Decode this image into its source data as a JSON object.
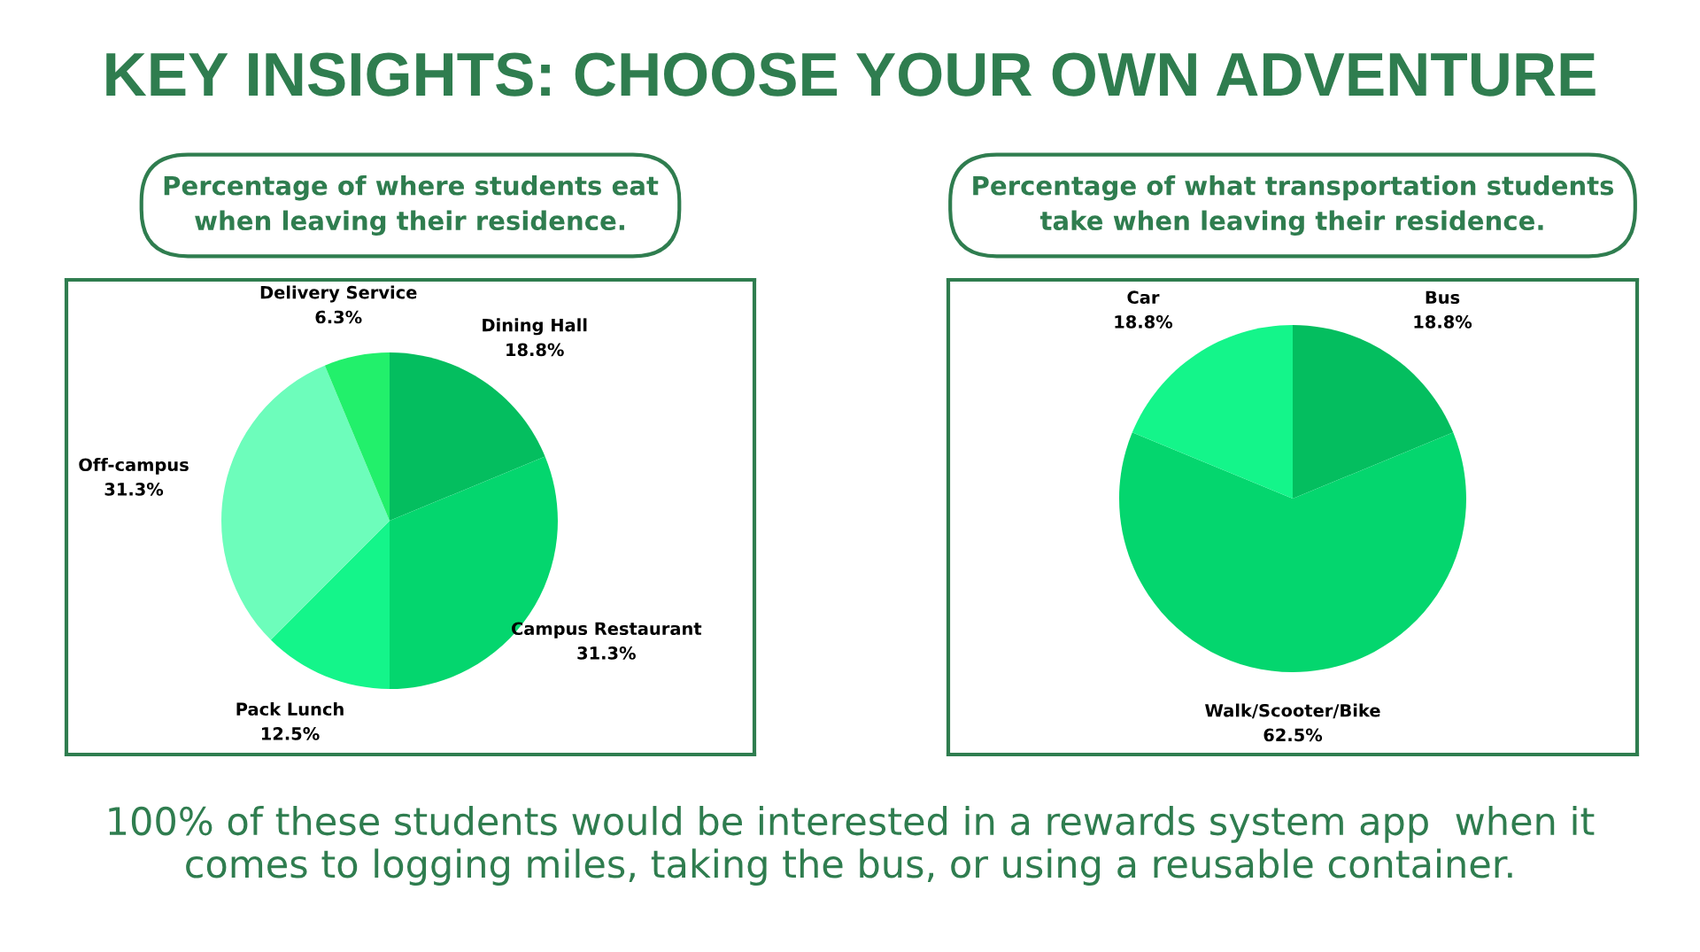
{
  "chart_data": [
    {
      "type": "other",
      "title": "KEY INSIGHTS: CHOOSE YOUR OWN ADVENTURE",
      "annotations": [
        "100% of these students would be interested in a rewards system app  when it comes to logging miles, taking the bus, or using a reusable container."
      ]
    },
    {
      "type": "pie",
      "title": "Percentage of where students eat\nwhen leaving their residence.",
      "categories": [
        "Dining Hall",
        "Campus Restaurant",
        "Pack Lunch",
        "Off-campus",
        "Delivery Service"
      ],
      "values": [
        18.8,
        31.3,
        12.5,
        31.3,
        6.3
      ],
      "value_labels": [
        "18.8%",
        "31.3%",
        "12.5%",
        "31.3%",
        "6.3%"
      ],
      "colors": [
        "#04be5f",
        "#04d66e",
        "#14f58a",
        "#6dfdbb",
        "#22f06b"
      ]
    },
    {
      "type": "pie",
      "title": "Percentage of what transportation students\ntake when leaving their residence.",
      "categories": [
        "Bus",
        "Walk/Scooter/Bike",
        "Car"
      ],
      "values": [
        18.8,
        62.5,
        18.8
      ],
      "value_labels": [
        "18.8%",
        "62.5%",
        "18.8%"
      ],
      "colors": [
        "#04be5f",
        "#04d66e",
        "#14f58a"
      ]
    }
  ]
}
